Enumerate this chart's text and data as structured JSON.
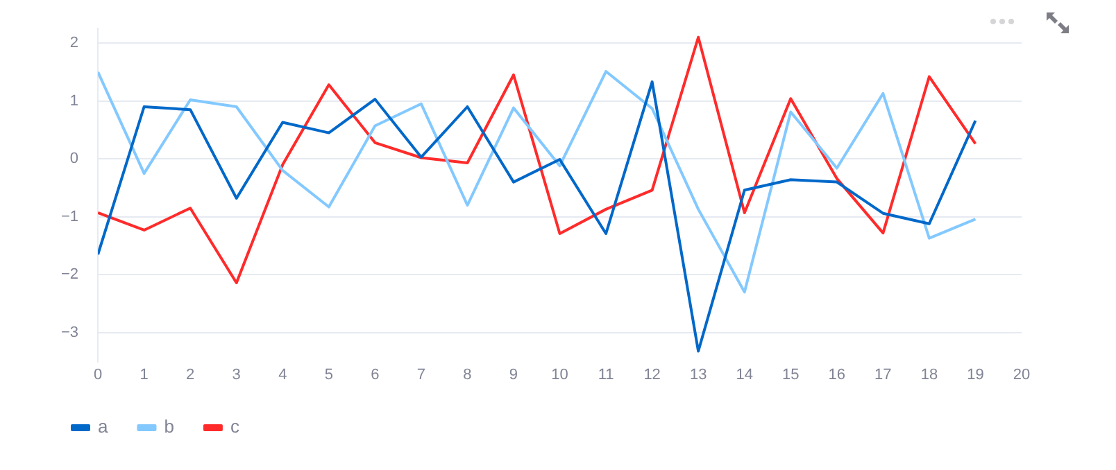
{
  "chart_data": {
    "type": "line",
    "x": [
      0,
      1,
      2,
      3,
      4,
      5,
      6,
      7,
      8,
      9,
      10,
      11,
      12,
      13,
      14,
      15,
      16,
      17,
      18,
      19
    ],
    "series": [
      {
        "name": "a",
        "color": "#0068c9",
        "values": [
          -1.65,
          0.9,
          0.85,
          -0.68,
          0.63,
          0.45,
          1.03,
          0.03,
          0.9,
          -0.4,
          -0.01,
          -1.29,
          1.33,
          -3.32,
          -0.54,
          -0.36,
          -0.4,
          -0.94,
          -1.12,
          0.66
        ]
      },
      {
        "name": "b",
        "color": "#83c9ff",
        "values": [
          1.5,
          -0.25,
          1.02,
          0.9,
          -0.2,
          -0.83,
          0.57,
          0.95,
          -0.8,
          0.88,
          -0.12,
          1.51,
          0.87,
          -0.87,
          -2.3,
          0.81,
          -0.16,
          1.13,
          -1.37,
          -1.04
        ]
      },
      {
        "name": "c",
        "color": "#ff2b2b",
        "values": [
          -0.93,
          -1.23,
          -0.85,
          -2.14,
          -0.1,
          1.28,
          0.28,
          0.02,
          -0.07,
          1.45,
          -1.29,
          -0.87,
          -0.54,
          2.1,
          -0.93,
          1.04,
          -0.34,
          -1.28,
          1.42,
          0.26
        ]
      }
    ],
    "xlim": [
      0,
      20
    ],
    "xticks": [
      0,
      1,
      2,
      3,
      4,
      5,
      6,
      7,
      8,
      9,
      10,
      11,
      12,
      13,
      14,
      15,
      16,
      17,
      18,
      19,
      20
    ],
    "ylim": [
      -3.5,
      2.25
    ],
    "yticks": [
      -3,
      -2,
      -1,
      0,
      1,
      2
    ],
    "grid": "y",
    "legend": "bottom left",
    "marker": "none",
    "line_style": "solid"
  }
}
